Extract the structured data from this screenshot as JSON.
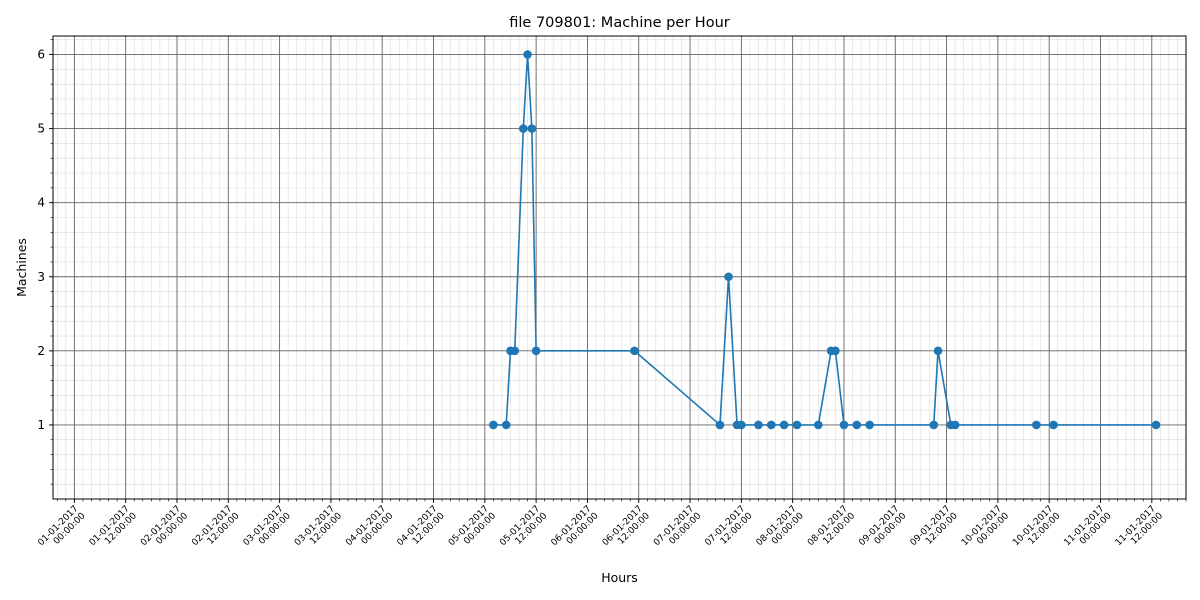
{
  "chart_data": {
    "type": "line",
    "title": "file 709801: Machine per Hour",
    "xlabel": "Hours",
    "ylabel": "Machines",
    "ylim": [
      0,
      6.25
    ],
    "xlim": [
      "2016-12-31T19:00:00",
      "2017-01-11T20:00:00"
    ],
    "y_ticks": [
      1,
      2,
      3,
      4,
      5,
      6
    ],
    "x_ticks": [
      {
        "t": "2017-01-01T00:00:00",
        "label": [
          "01-01-2017",
          "00:00:00"
        ]
      },
      {
        "t": "2017-01-01T12:00:00",
        "label": [
          "01-01-2017",
          "12:00:00"
        ]
      },
      {
        "t": "2017-01-02T00:00:00",
        "label": [
          "02-01-2017",
          "00:00:00"
        ]
      },
      {
        "t": "2017-01-02T12:00:00",
        "label": [
          "02-01-2017",
          "12:00:00"
        ]
      },
      {
        "t": "2017-01-03T00:00:00",
        "label": [
          "03-01-2017",
          "00:00:00"
        ]
      },
      {
        "t": "2017-01-03T12:00:00",
        "label": [
          "03-01-2017",
          "12:00:00"
        ]
      },
      {
        "t": "2017-01-04T00:00:00",
        "label": [
          "04-01-2017",
          "00:00:00"
        ]
      },
      {
        "t": "2017-01-04T12:00:00",
        "label": [
          "04-01-2017",
          "12:00:00"
        ]
      },
      {
        "t": "2017-01-05T00:00:00",
        "label": [
          "05-01-2017",
          "00:00:00"
        ]
      },
      {
        "t": "2017-01-05T12:00:00",
        "label": [
          "05-01-2017",
          "12:00:00"
        ]
      },
      {
        "t": "2017-01-06T00:00:00",
        "label": [
          "06-01-2017",
          "00:00:00"
        ]
      },
      {
        "t": "2017-01-06T12:00:00",
        "label": [
          "06-01-2017",
          "12:00:00"
        ]
      },
      {
        "t": "2017-01-07T00:00:00",
        "label": [
          "07-01-2017",
          "00:00:00"
        ]
      },
      {
        "t": "2017-01-07T12:00:00",
        "label": [
          "07-01-2017",
          "12:00:00"
        ]
      },
      {
        "t": "2017-01-08T00:00:00",
        "label": [
          "08-01-2017",
          "00:00:00"
        ]
      },
      {
        "t": "2017-01-08T12:00:00",
        "label": [
          "08-01-2017",
          "12:00:00"
        ]
      },
      {
        "t": "2017-01-09T00:00:00",
        "label": [
          "09-01-2017",
          "00:00:00"
        ]
      },
      {
        "t": "2017-01-09T12:00:00",
        "label": [
          "09-01-2017",
          "12:00:00"
        ]
      },
      {
        "t": "2017-01-10T00:00:00",
        "label": [
          "10-01-2017",
          "00:00:00"
        ]
      },
      {
        "t": "2017-01-10T12:00:00",
        "label": [
          "10-01-2017",
          "12:00:00"
        ]
      },
      {
        "t": "2017-01-11T00:00:00",
        "label": [
          "11-01-2017",
          "00:00:00"
        ]
      },
      {
        "t": "2017-01-11T12:00:00",
        "label": [
          "11-01-2017",
          "12:00:00"
        ]
      }
    ],
    "grid": true,
    "minor_grid": true,
    "series": [
      {
        "color": "#1f77b4",
        "marker": "circle",
        "points": [
          {
            "x": "2017-01-05T02:00:00",
            "y": 1
          },
          {
            "x": "2017-01-05T05:00:00",
            "y": 1
          },
          {
            "x": "2017-01-05T06:00:00",
            "y": 2
          },
          {
            "x": "2017-01-05T07:00:00",
            "y": 2
          },
          {
            "x": "2017-01-05T09:00:00",
            "y": 5
          },
          {
            "x": "2017-01-05T10:00:00",
            "y": 6
          },
          {
            "x": "2017-01-05T11:00:00",
            "y": 5
          },
          {
            "x": "2017-01-05T12:00:00",
            "y": 2
          },
          {
            "x": "2017-01-06T11:00:00",
            "y": 2
          },
          {
            "x": "2017-01-07T07:00:00",
            "y": 1
          },
          {
            "x": "2017-01-07T09:00:00",
            "y": 3
          },
          {
            "x": "2017-01-07T11:00:00",
            "y": 1
          },
          {
            "x": "2017-01-07T12:00:00",
            "y": 1
          },
          {
            "x": "2017-01-07T16:00:00",
            "y": 1
          },
          {
            "x": "2017-01-07T19:00:00",
            "y": 1
          },
          {
            "x": "2017-01-07T22:00:00",
            "y": 1
          },
          {
            "x": "2017-01-08T01:00:00",
            "y": 1
          },
          {
            "x": "2017-01-08T06:00:00",
            "y": 1
          },
          {
            "x": "2017-01-08T09:00:00",
            "y": 2
          },
          {
            "x": "2017-01-08T10:00:00",
            "y": 2
          },
          {
            "x": "2017-01-08T12:00:00",
            "y": 1
          },
          {
            "x": "2017-01-08T15:00:00",
            "y": 1
          },
          {
            "x": "2017-01-08T18:00:00",
            "y": 1
          },
          {
            "x": "2017-01-09T09:00:00",
            "y": 1
          },
          {
            "x": "2017-01-09T10:00:00",
            "y": 2
          },
          {
            "x": "2017-01-09T13:00:00",
            "y": 1
          },
          {
            "x": "2017-01-09T14:00:00",
            "y": 1
          },
          {
            "x": "2017-01-10T09:00:00",
            "y": 1
          },
          {
            "x": "2017-01-10T13:00:00",
            "y": 1
          },
          {
            "x": "2017-01-11T13:00:00",
            "y": 1
          }
        ]
      }
    ]
  }
}
